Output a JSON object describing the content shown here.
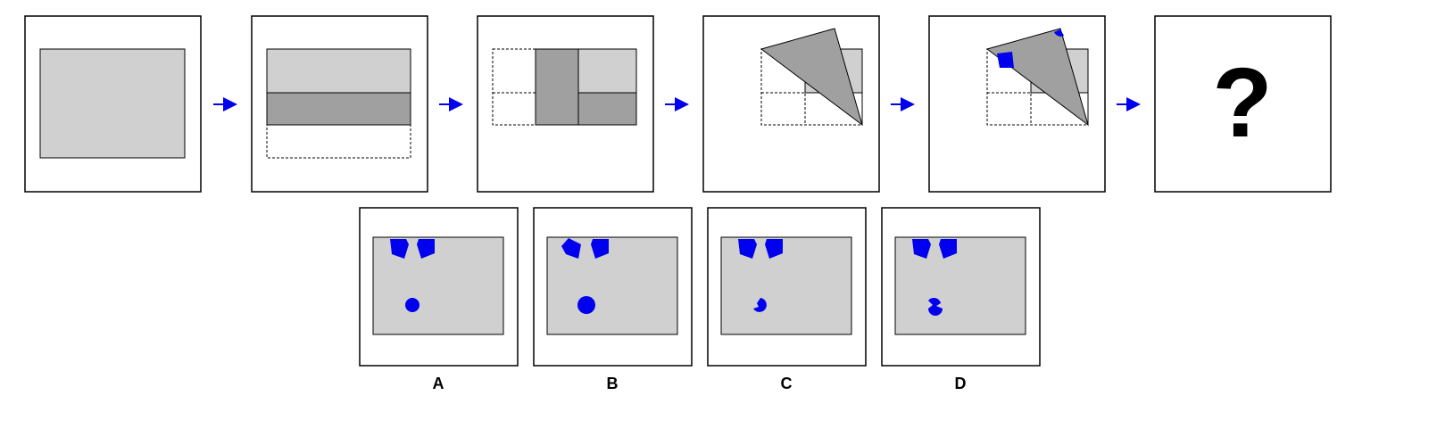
{
  "question_mark": "?",
  "options": [
    "A",
    "B",
    "C",
    "D"
  ]
}
